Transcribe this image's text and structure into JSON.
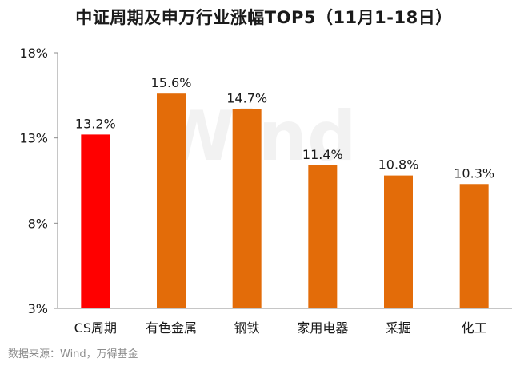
{
  "chart_data": {
    "type": "bar",
    "title": "中证周期及申万行业涨幅TOP5（11月1-18日）",
    "categories": [
      "CS周期",
      "有色金属",
      "钢铁",
      "家用电器",
      "采掘",
      "化工"
    ],
    "values": [
      13.2,
      15.6,
      14.7,
      11.4,
      10.8,
      10.3
    ],
    "data_labels": [
      "13.2%",
      "15.6%",
      "14.7%",
      "11.4%",
      "10.8%",
      "10.3%"
    ],
    "y_ticks": [
      3,
      8,
      13,
      18
    ],
    "y_tick_labels": [
      "3%",
      "8%",
      "13%",
      "18%"
    ],
    "ylim": [
      3,
      18
    ],
    "grid": false,
    "legend": "none",
    "colors": [
      "#ff0000",
      "#e36c09",
      "#e36c09",
      "#e36c09",
      "#e36c09",
      "#e36c09"
    ]
  },
  "watermark": "Wind",
  "source_note": "数据来源：Wind，万得基金"
}
